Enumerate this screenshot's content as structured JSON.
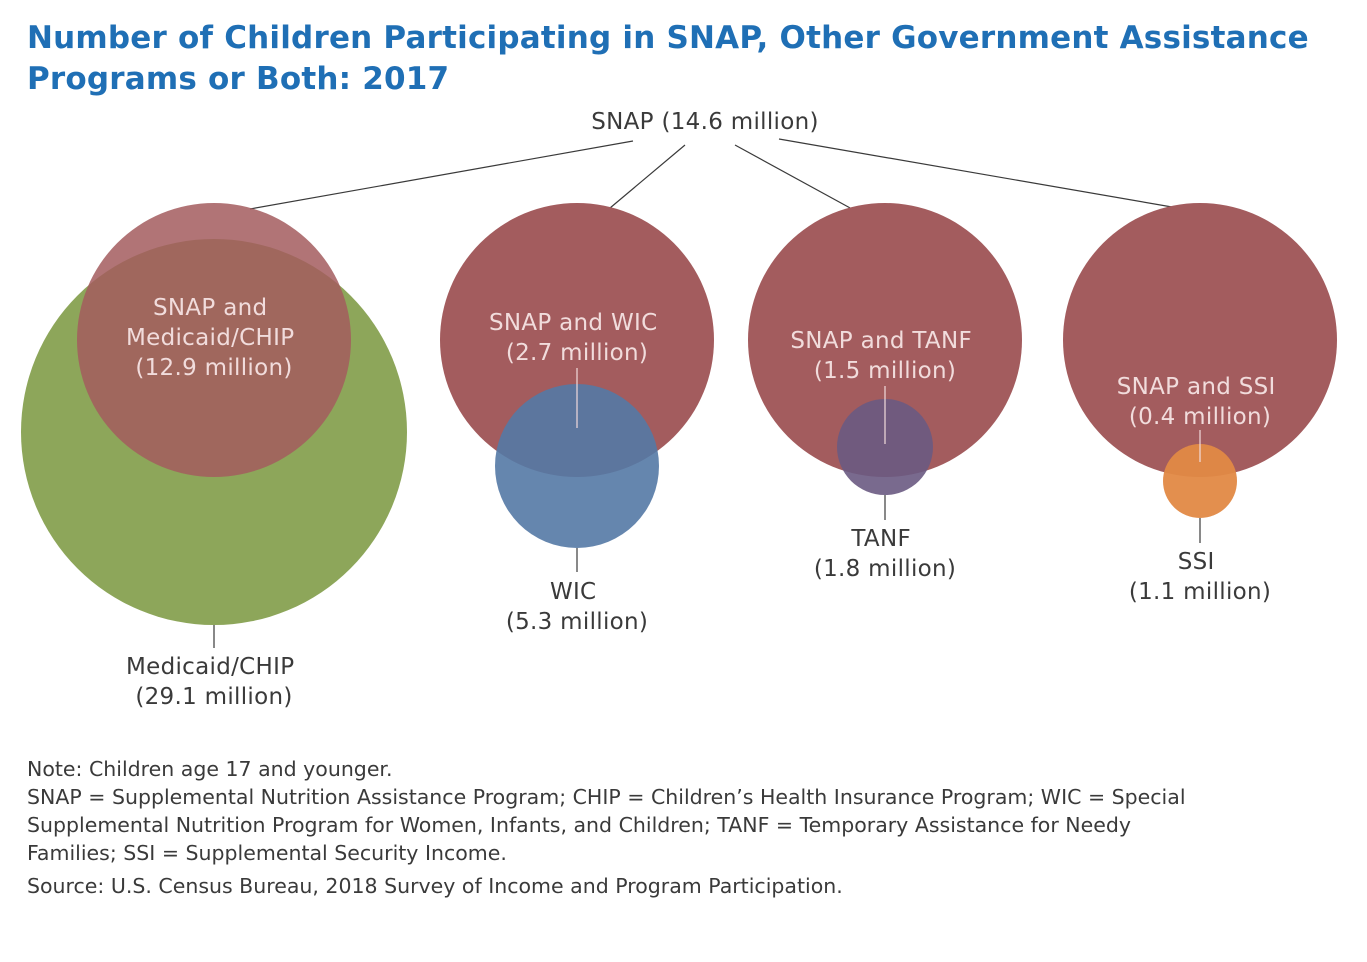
{
  "title": {
    "line1": "Number of Children Participating in SNAP, Other Government Assistance",
    "line2": "Programs or Both: 2017"
  },
  "root_label": "SNAP (14.6 million)",
  "colors": {
    "snap": "#a35c5e",
    "medicaid_chip": "#8da65a",
    "wic": "#5479a5",
    "tanf": "#6a5a82",
    "ssi": "#e28945",
    "title": "#1f6fb5",
    "text": "#3a3a3a",
    "connector": "#3a3a3a"
  },
  "groups": [
    {
      "program": "Medicaid/CHIP",
      "overlap_label": [
        "SNAP and",
        "Medicaid/CHIP",
        "(12.9 million)"
      ],
      "program_label": [
        "Medicaid/CHIP",
        "(29.1 million)"
      ]
    },
    {
      "program": "WIC",
      "overlap_label": [
        "SNAP and WIC",
        "(2.7 million)"
      ],
      "program_label": [
        "WIC",
        "(5.3 million)"
      ]
    },
    {
      "program": "TANF",
      "overlap_label": [
        "SNAP and TANF",
        "(1.5 million)"
      ],
      "program_label": [
        "TANF",
        "(1.8 million)"
      ]
    },
    {
      "program": "SSI",
      "overlap_label": [
        "SNAP and SSI",
        "(0.4 million)"
      ],
      "program_label": [
        "SSI",
        "(1.1 million)"
      ]
    }
  ],
  "notes": {
    "note": "Note: Children age 17 and younger.",
    "abbrev_lines": [
      "SNAP = Supplemental Nutrition Assistance Program; CHIP = Children’s Health Insurance Program; WIC = Special",
      "Supplemental Nutrition Program for Women, Infants, and Children; TANF = Temporary Assistance for Needy",
      "Families; SSI = Supplemental Security Income."
    ],
    "source": "Source: U.S. Census Bureau, 2018 Survey of Income and Program Participation."
  }
}
